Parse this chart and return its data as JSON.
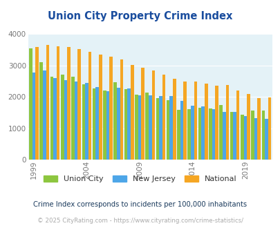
{
  "title": "Union City Property Crime Index",
  "title_color": "#1a4d9e",
  "years": [
    1999,
    2000,
    2001,
    2002,
    2003,
    2004,
    2005,
    2006,
    2007,
    2008,
    2009,
    2010,
    2011,
    2012,
    2013,
    2014,
    2015,
    2016,
    2017,
    2018,
    2019,
    2020,
    2021
  ],
  "union_city": [
    3550,
    3100,
    2650,
    2700,
    2640,
    2400,
    2280,
    2200,
    2460,
    2250,
    2070,
    2140,
    1960,
    1890,
    1590,
    1610,
    1650,
    1640,
    1740,
    1530,
    1440,
    1570,
    1570
  ],
  "new_jersey": [
    2770,
    2840,
    2590,
    2540,
    2490,
    2440,
    2310,
    2190,
    2300,
    2260,
    2060,
    2060,
    2030,
    2030,
    1880,
    1720,
    1690,
    1600,
    1530,
    1510,
    1380,
    1320,
    1310
  ],
  "national": [
    3600,
    3650,
    3610,
    3590,
    3520,
    3440,
    3340,
    3280,
    3190,
    3020,
    2940,
    2850,
    2720,
    2580,
    2490,
    2490,
    2420,
    2360,
    2370,
    2200,
    2100,
    1960,
    1980
  ],
  "union_city_color": "#8dc63f",
  "new_jersey_color": "#4da6e8",
  "national_color": "#f5a623",
  "bg_color": "#e4f2f7",
  "ylim": [
    0,
    4000
  ],
  "yticks": [
    0,
    1000,
    2000,
    3000,
    4000
  ],
  "xtick_years": [
    1999,
    2004,
    2009,
    2014,
    2019
  ],
  "legend_labels": [
    "Union City",
    "New Jersey",
    "National"
  ],
  "footnote1": "Crime Index corresponds to incidents per 100,000 inhabitants",
  "footnote2": "© 2025 CityRating.com - https://www.cityrating.com/crime-statistics/",
  "footnote1_color": "#1a3a5c",
  "footnote2_color": "#aaaaaa",
  "bar_width": 0.3
}
